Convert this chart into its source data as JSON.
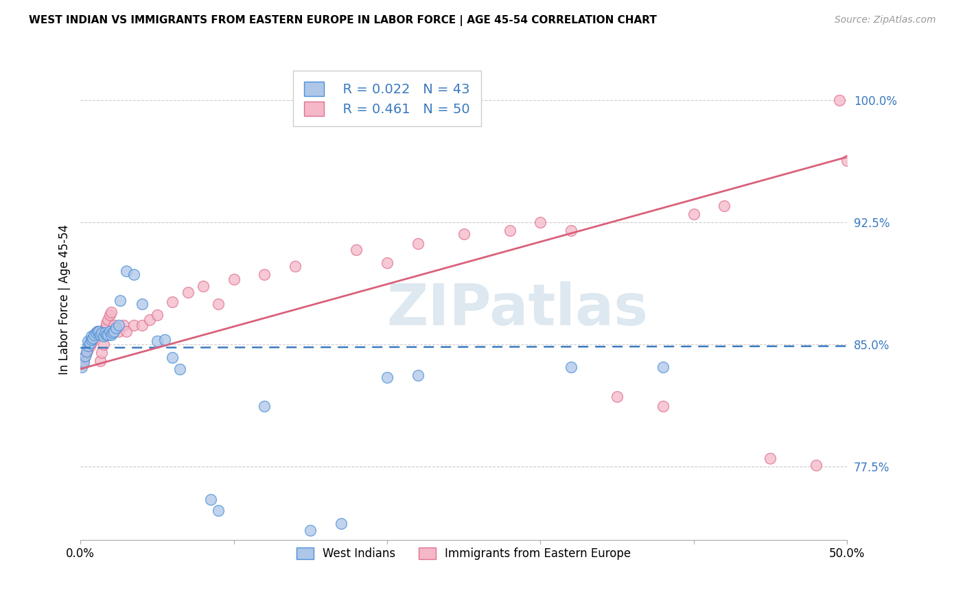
{
  "title": "WEST INDIAN VS IMMIGRANTS FROM EASTERN EUROPE IN LABOR FORCE | AGE 45-54 CORRELATION CHART",
  "source": "Source: ZipAtlas.com",
  "ylabel": "In Labor Force | Age 45-54",
  "ytick_labels": [
    "77.5%",
    "85.0%",
    "92.5%",
    "100.0%"
  ],
  "ytick_values": [
    0.775,
    0.85,
    0.925,
    1.0
  ],
  "legend_blue_r": "R = 0.022",
  "legend_blue_n": "N = 43",
  "legend_pink_r": "R = 0.461",
  "legend_pink_n": "N = 50",
  "legend_blue_label": "West Indians",
  "legend_pink_label": "Immigrants from Eastern Europe",
  "blue_fill": "#aec6e8",
  "pink_fill": "#f4b8c8",
  "blue_edge": "#4a90d9",
  "pink_edge": "#e07090",
  "blue_line": "#3a7abf",
  "pink_line": "#d9607a",
  "text_color_blue": "#3a7abf",
  "watermark_color": "#dde8f0",
  "blue_x": [
    0.001,
    0.002,
    0.003,
    0.004,
    0.005,
    0.005,
    0.006,
    0.007,
    0.007,
    0.008,
    0.009,
    0.01,
    0.011,
    0.012,
    0.013,
    0.014,
    0.015,
    0.016,
    0.017,
    0.018,
    0.019,
    0.02,
    0.021,
    0.022,
    0.023,
    0.025,
    0.026,
    0.03,
    0.035,
    0.04,
    0.05,
    0.055,
    0.06,
    0.065,
    0.085,
    0.09,
    0.12,
    0.15,
    0.17,
    0.2,
    0.22,
    0.32,
    0.38
  ],
  "blue_y": [
    0.836,
    0.839,
    0.843,
    0.846,
    0.849,
    0.852,
    0.851,
    0.853,
    0.855,
    0.854,
    0.856,
    0.857,
    0.858,
    0.858,
    0.856,
    0.857,
    0.855,
    0.857,
    0.856,
    0.856,
    0.858,
    0.856,
    0.857,
    0.858,
    0.86,
    0.862,
    0.877,
    0.895,
    0.893,
    0.875,
    0.852,
    0.853,
    0.842,
    0.835,
    0.755,
    0.748,
    0.812,
    0.736,
    0.74,
    0.83,
    0.831,
    0.836,
    0.836
  ],
  "pink_x": [
    0.001,
    0.002,
    0.003,
    0.004,
    0.005,
    0.006,
    0.007,
    0.008,
    0.009,
    0.01,
    0.011,
    0.012,
    0.013,
    0.014,
    0.015,
    0.016,
    0.017,
    0.018,
    0.019,
    0.02,
    0.022,
    0.025,
    0.028,
    0.03,
    0.035,
    0.04,
    0.045,
    0.05,
    0.06,
    0.07,
    0.08,
    0.09,
    0.1,
    0.12,
    0.14,
    0.18,
    0.2,
    0.22,
    0.25,
    0.28,
    0.3,
    0.32,
    0.35,
    0.38,
    0.4,
    0.42,
    0.45,
    0.48,
    0.495,
    0.5
  ],
  "pink_y": [
    0.838,
    0.84,
    0.843,
    0.845,
    0.847,
    0.849,
    0.851,
    0.853,
    0.855,
    0.857,
    0.858,
    0.857,
    0.84,
    0.845,
    0.85,
    0.86,
    0.863,
    0.865,
    0.868,
    0.87,
    0.862,
    0.858,
    0.862,
    0.858,
    0.862,
    0.862,
    0.865,
    0.868,
    0.876,
    0.882,
    0.886,
    0.875,
    0.89,
    0.893,
    0.898,
    0.908,
    0.9,
    0.912,
    0.918,
    0.92,
    0.925,
    0.92,
    0.818,
    0.812,
    0.93,
    0.935,
    0.78,
    0.776,
    1.0,
    0.963
  ],
  "xlim": [
    0.0,
    0.5
  ],
  "ylim": [
    0.73,
    1.025
  ],
  "blue_r": 0.022,
  "pink_r": 0.461
}
